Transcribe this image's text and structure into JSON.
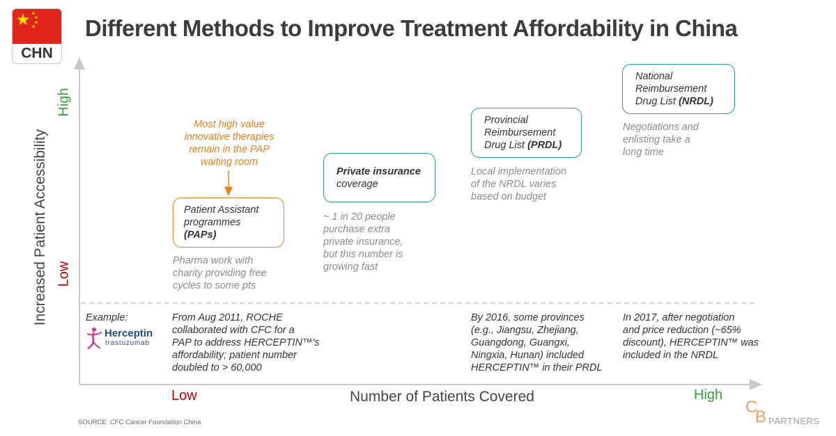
{
  "header": {
    "country_code": "CHN",
    "title": "Different Methods to Improve Treatment Affordability in China"
  },
  "axes": {
    "y_title": "Increased Patient Accessibility",
    "y_high": "High",
    "y_low": "Low",
    "x_title": "Number of Patients Covered",
    "x_low": "Low",
    "x_high": "High"
  },
  "colors": {
    "teal_border": "#2b9c9c",
    "orange_accent": "#ef7d22",
    "low_red": "#c00000",
    "high_green": "#3a9e3a",
    "note_gray": "#8c8c8c"
  },
  "methods": {
    "pap": {
      "box_lines": [
        "Patient Assistant",
        "programmes"
      ],
      "box_bold": "(PAPs)",
      "note": [
        "Pharma work with",
        "charity providing free",
        "cycles to some pts"
      ],
      "callout": [
        "Most high value",
        "innovative therapies",
        "remain in the PAP",
        "waiting room"
      ]
    },
    "private": {
      "box_bold": "Private insurance",
      "box_line": "coverage",
      "note": [
        "~ 1 in 20 people",
        "purchase extra",
        "private insurance,",
        "but this number is",
        "growing fast"
      ]
    },
    "prdl": {
      "box_lines": [
        "Provincial",
        "Reimbursement"
      ],
      "box_last": "Drug List ",
      "box_bold": "(PRDL)",
      "note": [
        "Local implementation",
        "of the NRDL varies",
        "based on budget"
      ]
    },
    "nrdl": {
      "box_lines": [
        "National",
        "Reimbursement"
      ],
      "box_last": "Drug List ",
      "box_bold": "(NRDL)",
      "note": [
        "Negotiations and",
        "enlisting take a",
        "long time"
      ]
    }
  },
  "example": {
    "label": "Example:",
    "logo_word": "Herceptin",
    "logo_sub": "trastuzumab",
    "pap": [
      "From Aug 2011, ROCHE",
      "collaborated with CFC for a",
      "PAP to address HERCEPTIN™'s",
      "affordability; patient number",
      "doubled to > 60,000"
    ],
    "prdl": [
      "By 2016, some provinces",
      "(e.g., Jiangsu, Zhejiang,",
      "Guangdong, Guangxi,",
      "Ningxia, Hunan) included",
      "HERCEPTIN™ in their PRDL"
    ],
    "nrdl": [
      "In 2017, after negotiation",
      "and price reduction (~65%",
      "discount), HERCEPTIN™ was",
      "included in the NRDL"
    ]
  },
  "footer": {
    "source": "SOURCE: CFC Cancer Foundation China",
    "logo_c": "C",
    "logo_b": "B",
    "logo_partners": "PARTNERS"
  }
}
